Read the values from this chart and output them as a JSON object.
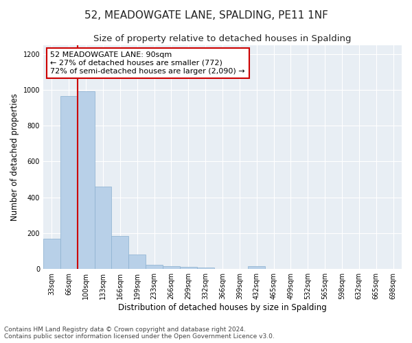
{
  "title": "52, MEADOWGATE LANE, SPALDING, PE11 1NF",
  "subtitle": "Size of property relative to detached houses in Spalding",
  "xlabel": "Distribution of detached houses by size in Spalding",
  "ylabel": "Number of detached properties",
  "categories": [
    "33sqm",
    "66sqm",
    "100sqm",
    "133sqm",
    "166sqm",
    "199sqm",
    "233sqm",
    "266sqm",
    "299sqm",
    "332sqm",
    "366sqm",
    "399sqm",
    "432sqm",
    "465sqm",
    "499sqm",
    "532sqm",
    "565sqm",
    "598sqm",
    "632sqm",
    "665sqm",
    "698sqm"
  ],
  "values": [
    170,
    965,
    990,
    460,
    185,
    80,
    25,
    18,
    12,
    8,
    0,
    0,
    18,
    0,
    0,
    0,
    0,
    0,
    0,
    0,
    0
  ],
  "bar_color": "#b8d0e8",
  "bar_edge_color": "#8ab0d0",
  "highlight_line_color": "#cc0000",
  "annotation_text": "52 MEADOWGATE LANE: 90sqm\n← 27% of detached houses are smaller (772)\n72% of semi-detached houses are larger (2,090) →",
  "annotation_box_color": "#ffffff",
  "annotation_box_edge": "#cc0000",
  "ylim": [
    0,
    1250
  ],
  "yticks": [
    0,
    200,
    400,
    600,
    800,
    1000,
    1200
  ],
  "footnote": "Contains HM Land Registry data © Crown copyright and database right 2024.\nContains public sector information licensed under the Open Government Licence v3.0.",
  "bg_color": "#ffffff",
  "plot_bg_color": "#e8eef4",
  "title_fontsize": 11,
  "subtitle_fontsize": 9.5,
  "label_fontsize": 8.5,
  "tick_fontsize": 7,
  "footnote_fontsize": 6.5,
  "annotation_fontsize": 8
}
